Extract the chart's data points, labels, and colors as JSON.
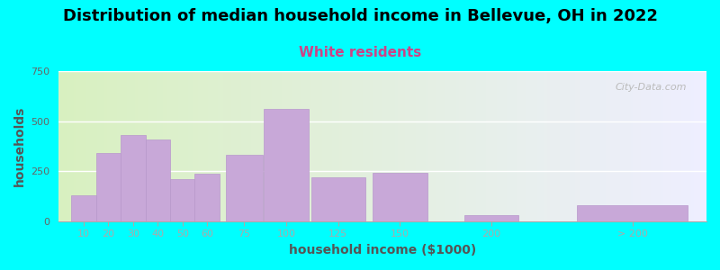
{
  "title": "Distribution of median household income in Bellevue, OH in 2022",
  "subtitle": "White residents",
  "xlabel": "household income ($1000)",
  "ylabel": "households",
  "background_color": "#00FFFF",
  "bar_color": "#c8a8d8",
  "bar_edgecolor": "#b898cc",
  "ylim": [
    0,
    750
  ],
  "yticks": [
    0,
    250,
    500,
    750
  ],
  "xlim": [
    0,
    262
  ],
  "categories": [
    "10",
    "20",
    "30",
    "40",
    "50",
    "60",
    "75",
    "100",
    "125",
    "150",
    "200",
    "> 200"
  ],
  "bar_positions": [
    10,
    20,
    30,
    40,
    50,
    60,
    75,
    92,
    113,
    138,
    175,
    232
  ],
  "bar_widths": [
    10,
    10,
    10,
    10,
    10,
    10,
    15,
    18,
    22,
    22,
    22,
    45
  ],
  "bar_heights": [
    130,
    340,
    430,
    410,
    210,
    235,
    330,
    560,
    220,
    240,
    30,
    80
  ],
  "watermark": "City-Data.com",
  "title_fontsize": 13,
  "subtitle_fontsize": 11,
  "axis_label_fontsize": 10,
  "bg_color_left": "#d8f0c0",
  "bg_color_right": "#eeeeff"
}
